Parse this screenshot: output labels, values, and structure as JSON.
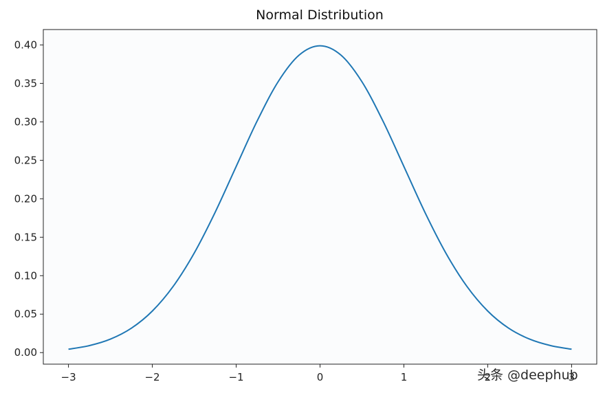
{
  "chart_data": {
    "type": "line",
    "title": "Normal Distribution",
    "xlabel": "",
    "ylabel": "",
    "xlim": [
      -3.3,
      3.3
    ],
    "ylim": [
      -0.015,
      0.42
    ],
    "x_ticks": [
      -3,
      -2,
      -1,
      0,
      1,
      2,
      3
    ],
    "x_tick_labels": [
      "−3",
      "−2",
      "−1",
      "0",
      "1",
      "2",
      "3"
    ],
    "y_ticks": [
      0.0,
      0.05,
      0.1,
      0.15,
      0.2,
      0.25,
      0.3,
      0.35,
      0.4
    ],
    "y_tick_labels": [
      "0.00",
      "0.05",
      "0.10",
      "0.15",
      "0.20",
      "0.25",
      "0.30",
      "0.35",
      "0.40"
    ],
    "grid": false,
    "series": [
      {
        "color": "#1f77b4",
        "x": [
          -3.0,
          -2.75,
          -2.5,
          -2.25,
          -2.0,
          -1.75,
          -1.5,
          -1.25,
          -1.0,
          -0.75,
          -0.5,
          -0.25,
          0.0,
          0.25,
          0.5,
          0.75,
          1.0,
          1.25,
          1.5,
          1.75,
          2.0,
          2.25,
          2.5,
          2.75,
          3.0
        ],
        "y": [
          0.0044,
          0.0091,
          0.0175,
          0.0317,
          0.054,
          0.0863,
          0.1295,
          0.1826,
          0.242,
          0.3011,
          0.3521,
          0.3867,
          0.3989,
          0.3867,
          0.3521,
          0.3011,
          0.242,
          0.1826,
          0.1295,
          0.0863,
          0.054,
          0.0317,
          0.0175,
          0.0091,
          0.0044
        ]
      }
    ]
  },
  "watermark": {
    "text": "头条 @deephub"
  }
}
